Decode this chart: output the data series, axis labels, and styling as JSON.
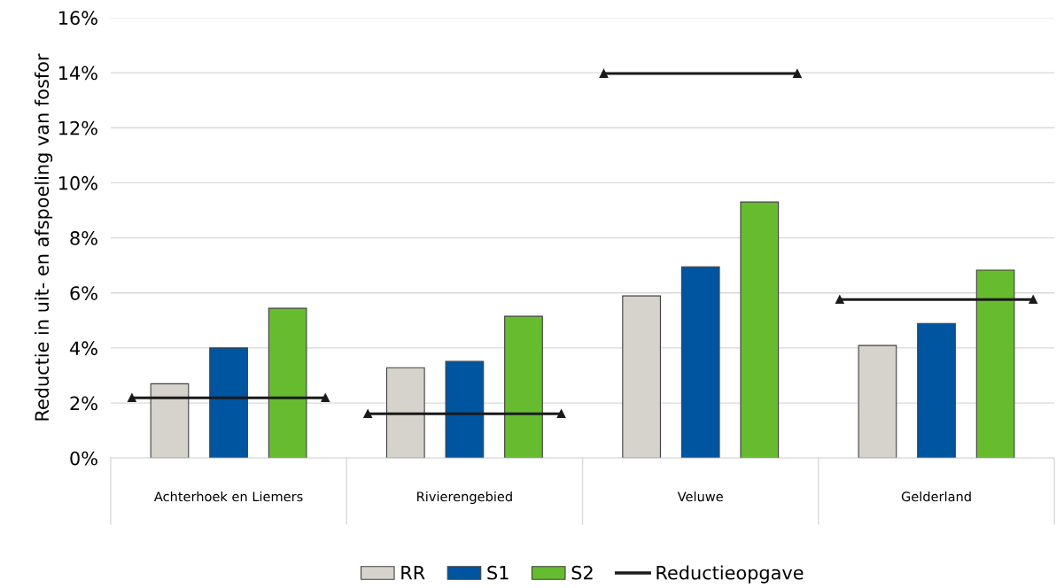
{
  "chart_data": {
    "type": "bar",
    "ylabel": "Reductie in uit- en afspoeling van fosfor",
    "categories": [
      "Achterhoek en Liemers",
      "Rivierengebied",
      "Veluwe",
      "Gelderland"
    ],
    "series": [
      {
        "name": "RR",
        "color": "#d6d3cc",
        "values": [
          2.7,
          3.28,
          5.89,
          4.09
        ]
      },
      {
        "name": "S1",
        "color": "#0055a0",
        "values": [
          4.0,
          3.51,
          6.95,
          4.89
        ]
      },
      {
        "name": "S2",
        "color": "#66bb2e",
        "values": [
          5.44,
          5.15,
          9.3,
          6.83
        ]
      },
      {
        "name": "Reductieopgave",
        "type": "scatter",
        "color": "#1a1a1a",
        "marker": "triangle",
        "values": [
          2.19,
          1.61,
          13.97,
          5.76
        ]
      }
    ],
    "ylim": [
      0,
      16
    ],
    "yticks": [
      {
        "value": 0,
        "label": "0%"
      },
      {
        "value": 2,
        "label": "2%"
      },
      {
        "value": 4,
        "label": "4%"
      },
      {
        "value": 6,
        "label": "6%"
      },
      {
        "value": 8,
        "label": "8%"
      },
      {
        "value": 10,
        "label": "10%"
      },
      {
        "value": 12,
        "label": "12%"
      },
      {
        "value": 14,
        "label": "14%"
      },
      {
        "value": 16,
        "label": "16%"
      }
    ],
    "grid": "y",
    "legend": "bottom"
  }
}
